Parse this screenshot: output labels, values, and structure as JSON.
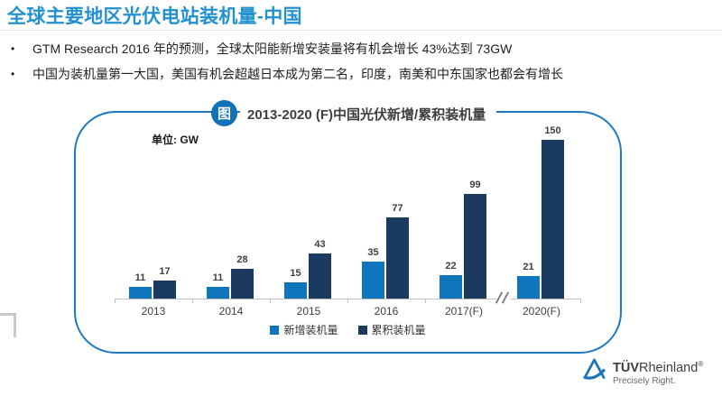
{
  "slide": {
    "title": "全球主要地区光伏电站装机量-中国",
    "bullet_marker": "•",
    "bullets": [
      "GTM Research 2016 年的预测，全球太阳能新增安装量将有机会增长 43%达到 73GW",
      "中国为装机量第一大国，美国有机会超越日本成为第二名，印度，南美和中东国家也都会有增长"
    ]
  },
  "panel": {
    "badge_label": "图",
    "chart_title": "2013-2020 (F)中国光伏新增/累积装机量",
    "unit_label": "单位: GW"
  },
  "chart_data": {
    "type": "bar",
    "title": "2013-2020 (F)中国光伏新增/累积装机量",
    "unit": "GW",
    "categories": [
      "2013",
      "2014",
      "2015",
      "2016",
      "2017(F)",
      "2020(F)"
    ],
    "series": [
      {
        "name": "新增装机量",
        "color": "#0F75BC",
        "values": [
          11,
          11,
          15,
          35,
          22,
          21
        ]
      },
      {
        "name": "累积装机量",
        "color": "#1B3A5F",
        "values": [
          17,
          28,
          43,
          77,
          99,
          150
        ]
      }
    ],
    "ylim": [
      0,
      160
    ],
    "grid": false,
    "data_labels": true,
    "legend_position": "bottom",
    "axis_break_between": [
      "2017(F)",
      "2020(F)"
    ]
  },
  "logo": {
    "brand_bold": "TÜV",
    "brand_regular": "Rheinland",
    "registered": "®",
    "tagline": "Precisely Right."
  },
  "colors": {
    "title_blue": "#2191D0",
    "panel_border": "#1E7AC0",
    "badge_bg": "#1272B8",
    "bar_new": "#0F75BC",
    "bar_cumulative": "#1B3A5F",
    "axis_gray": "#BFBFBF",
    "label_gray": "#3F3F3F"
  }
}
